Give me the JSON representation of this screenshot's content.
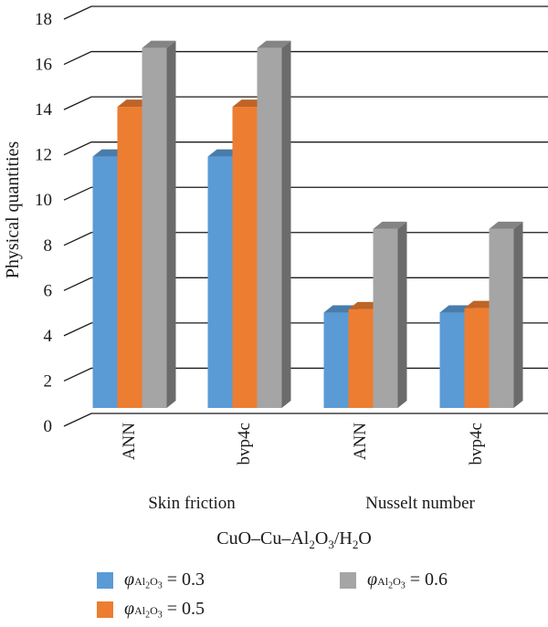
{
  "chart_data": {
    "type": "bar",
    "style": "3d-clustered-column",
    "ylabel": "Physical quantities",
    "xlabel_parts": [
      "CuO–Cu–Al",
      "2",
      "O",
      "3",
      "/H",
      "2",
      "O"
    ],
    "ylim": [
      0,
      18
    ],
    "yticks": [
      0,
      2,
      4,
      6,
      8,
      10,
      12,
      14,
      16,
      18
    ],
    "groups": [
      "Skin friction",
      "Nusselt number"
    ],
    "categories": [
      "ANN",
      "bvp4c",
      "ANN",
      "bvp4c"
    ],
    "series": [
      {
        "label": "= 0.3",
        "color": "#5b9bd5",
        "values": [
          11.6,
          11.6,
          4.7,
          4.7
        ]
      },
      {
        "label": "= 0.5",
        "color": "#ed7d31",
        "values": [
          13.8,
          13.8,
          4.85,
          4.9
        ]
      },
      {
        "label": "= 0.6",
        "color": "#a5a5a5",
        "values": [
          16.4,
          16.4,
          8.4,
          8.4
        ]
      }
    ],
    "legend_symbol": {
      "phi": "φ",
      "sub": "Al",
      "sub_sub": "2",
      "sub_o": "O",
      "sub_o_sub": "3"
    },
    "legend_position": "bottom",
    "grid": true
  }
}
